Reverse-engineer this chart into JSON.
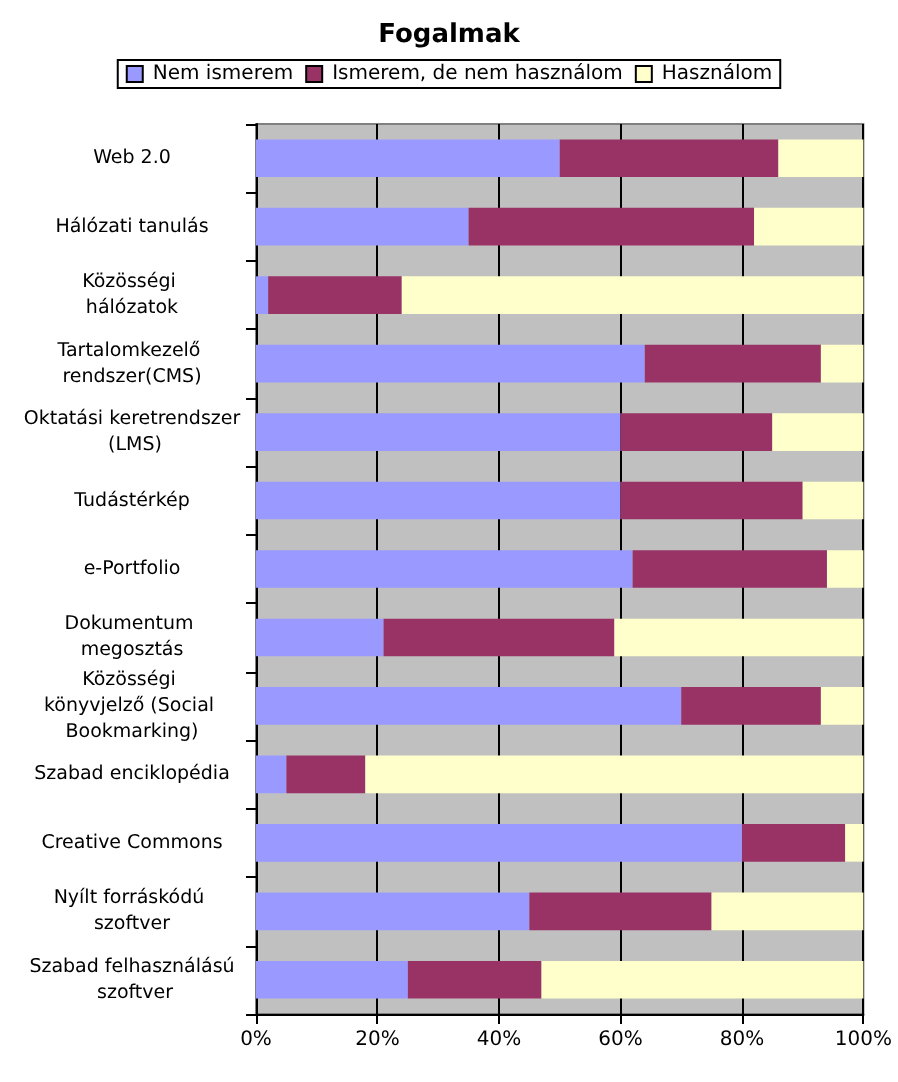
{
  "chart_data": {
    "type": "bar",
    "orientation": "horizontal",
    "stacked": true,
    "title": "Fogalmak",
    "categories": [
      "Web 2.0",
      "Hálózati tanulás",
      "Közösségi hálózatok",
      "Tartalomkezelő rendszer(CMS)",
      "Oktatási keretrendszer (LMS)",
      "Tudástérkép",
      "e-Portfolio",
      "Dokumentum megosztás",
      "Közösségi könyvjelző (Social Bookmarking)",
      "Szabad enciklopédia",
      "Creative Commons",
      "Nyílt forráskódú szoftver",
      "Szabad felhasználású szoftver"
    ],
    "series": [
      {
        "name": "Nem ismerem",
        "color": "#9999ff",
        "values": [
          50,
          35,
          2,
          64,
          60,
          60,
          62,
          21,
          70,
          5,
          80,
          45,
          25
        ]
      },
      {
        "name": "Ismerem, de nem használom",
        "color": "#993366",
        "values": [
          36,
          47,
          22,
          29,
          25,
          30,
          32,
          38,
          23,
          13,
          17,
          30,
          22
        ]
      },
      {
        "name": "Használom",
        "color": "#ffffcc",
        "values": [
          14,
          18,
          76,
          7,
          15,
          10,
          6,
          41,
          7,
          82,
          3,
          25,
          53
        ]
      }
    ],
    "xlim": [
      0,
      100
    ],
    "xticks": [
      {
        "value": 0,
        "label": "0%"
      },
      {
        "value": 20,
        "label": "20%"
      },
      {
        "value": 40,
        "label": "40%"
      },
      {
        "value": 60,
        "label": "60%"
      },
      {
        "value": 80,
        "label": "80%"
      },
      {
        "value": 100,
        "label": "100%"
      }
    ],
    "grid": "x",
    "legend": "top"
  }
}
